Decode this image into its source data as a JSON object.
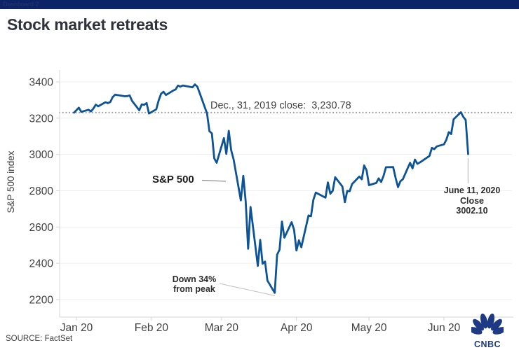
{
  "window": {
    "titlebar": "Dashboard 2"
  },
  "header": {
    "title": "Stock market retreats"
  },
  "source": {
    "label": "SOURCE: FactSet"
  },
  "logo": {
    "text": "CNBC"
  },
  "colors": {
    "line": "#0d5496",
    "brand": "#1e3a85",
    "titlebar_bg": "#0d2368",
    "grid": "#efefef",
    "axis": "#d6d6d6",
    "tick_text": "#3f3f3f",
    "ref_dotted": "#9f9f9f",
    "leader": "#bfbfbf",
    "leader_dark": "#8f8f8f"
  },
  "chart_data": {
    "type": "line",
    "title": "Stock market retreats",
    "xlabel": "",
    "ylabel": "S&P 500 index",
    "ylim": [
      2100,
      3450
    ],
    "grid": "horizontal, very light",
    "legend": "none (direct series label on chart)",
    "y_ticks": [
      2200,
      2400,
      2600,
      2800,
      3000,
      3200,
      3400
    ],
    "x_ticks": [
      {
        "label": "Jan 20",
        "month": 1
      },
      {
        "label": "Feb 20",
        "month": 2
      },
      {
        "label": "Mar 20",
        "month": 3
      },
      {
        "label": "Apr 20",
        "month": 4
      },
      {
        "label": "May 20",
        "month": 5
      },
      {
        "label": "Jun 20",
        "month": 6
      }
    ],
    "reference_line": {
      "value": 3230.78,
      "label": "Dec., 31, 2019 close:  3,230.78"
    },
    "annotations": {
      "series_label": "S&P 500",
      "trough": {
        "line1": "Down 34%",
        "line2": "from peak",
        "points_to_value": 2237.4
      },
      "last_point": {
        "line1": "June 11, 2020",
        "line2": "Close",
        "line3": "3002.10"
      }
    },
    "series": [
      {
        "name": "S&P 500",
        "dates": [
          "12-31",
          "1-2",
          "1-3",
          "1-6",
          "1-7",
          "1-8",
          "1-9",
          "1-10",
          "1-13",
          "1-14",
          "1-15",
          "1-16",
          "1-17",
          "1-21",
          "1-22",
          "1-23",
          "1-24",
          "1-27",
          "1-28",
          "1-29",
          "1-30",
          "1-31",
          "2-3",
          "2-4",
          "2-5",
          "2-6",
          "2-7",
          "2-10",
          "2-11",
          "2-12",
          "2-13",
          "2-14",
          "2-18",
          "2-19",
          "2-20",
          "2-21",
          "2-24",
          "2-25",
          "2-26",
          "2-27",
          "2-28",
          "3-2",
          "3-3",
          "3-4",
          "3-5",
          "3-6",
          "3-9",
          "3-10",
          "3-11",
          "3-12",
          "3-13",
          "3-16",
          "3-17",
          "3-18",
          "3-19",
          "3-20",
          "3-23",
          "3-24",
          "3-25",
          "3-26",
          "3-27",
          "3-30",
          "3-31",
          "4-1",
          "4-2",
          "4-3",
          "4-6",
          "4-7",
          "4-8",
          "4-9",
          "4-13",
          "4-14",
          "4-15",
          "4-16",
          "4-17",
          "4-20",
          "4-21",
          "4-22",
          "4-23",
          "4-24",
          "4-27",
          "4-28",
          "4-29",
          "4-30",
          "5-1",
          "5-4",
          "5-5",
          "5-6",
          "5-7",
          "5-8",
          "5-11",
          "5-12",
          "5-13",
          "5-14",
          "5-15",
          "5-18",
          "5-19",
          "5-20",
          "5-21",
          "5-22",
          "5-26",
          "5-27",
          "5-28",
          "5-29",
          "6-1",
          "6-2",
          "6-3",
          "6-4",
          "6-5",
          "6-8",
          "6-9",
          "6-10",
          "6-11"
        ],
        "values": [
          3230.78,
          3257.85,
          3234.85,
          3246.28,
          3237.18,
          3253.05,
          3274.7,
          3265.35,
          3288.13,
          3283.15,
          3289.29,
          3316.81,
          3329.62,
          3320.79,
          3321.75,
          3325.54,
          3295.47,
          3243.63,
          3276.24,
          3273.4,
          3283.66,
          3225.52,
          3248.92,
          3297.59,
          3334.69,
          3345.78,
          3327.71,
          3352.09,
          3357.75,
          3379.45,
          3373.94,
          3380.16,
          3370.29,
          3386.15,
          3373.23,
          3337.75,
          3225.89,
          3128.21,
          3116.39,
          2978.76,
          2954.22,
          3090.23,
          3003.37,
          3130.12,
          3023.94,
          2972.37,
          2746.56,
          2882.23,
          2741.38,
          2480.64,
          2711.02,
          2386.13,
          2529.19,
          2398.1,
          2409.39,
          2304.92,
          2237.4,
          2447.33,
          2475.56,
          2630.07,
          2541.47,
          2626.65,
          2584.59,
          2470.5,
          2526.9,
          2488.65,
          2663.68,
          2659.41,
          2749.98,
          2789.82,
          2761.63,
          2846.06,
          2783.36,
          2799.55,
          2874.56,
          2823.16,
          2736.56,
          2799.31,
          2797.8,
          2836.74,
          2878.48,
          2863.39,
          2939.51,
          2912.43,
          2830.71,
          2842.74,
          2868.44,
          2848.42,
          2881.19,
          2929.8,
          2930.32,
          2870.12,
          2820.0,
          2852.5,
          2863.7,
          2953.91,
          2922.94,
          2971.61,
          2948.51,
          2955.45,
          2991.77,
          3036.13,
          3029.73,
          3044.31,
          3055.73,
          3080.82,
          3122.87,
          3112.35,
          3193.93,
          3232.39,
          3207.18,
          3190.14,
          3002.1
        ]
      }
    ]
  }
}
